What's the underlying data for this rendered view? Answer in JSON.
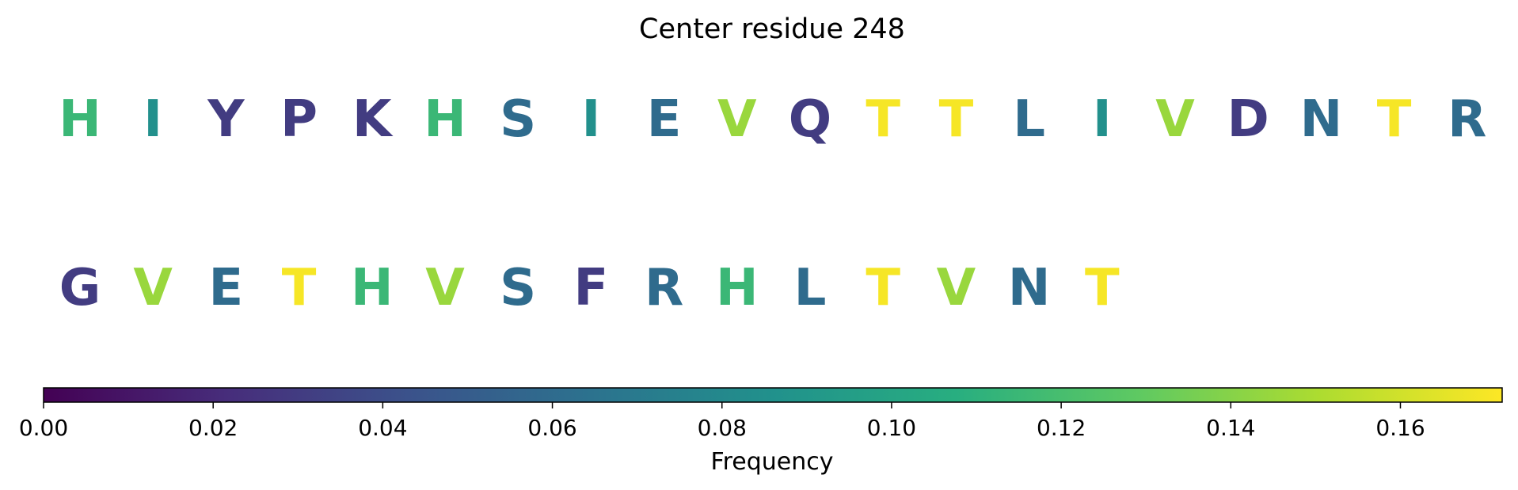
{
  "chart_data": {
    "type": "heatmap",
    "title": "Center residue 248",
    "rows": [
      {
        "residues": [
          "H",
          "I",
          "Y",
          "P",
          "K",
          "H",
          "S",
          "I",
          "E",
          "V",
          "Q",
          "T",
          "T",
          "L",
          "I",
          "V",
          "D",
          "N",
          "T",
          "R"
        ],
        "frequencies": [
          0.115,
          0.085,
          0.03,
          0.03,
          0.03,
          0.115,
          0.06,
          0.085,
          0.06,
          0.145,
          0.03,
          0.17,
          0.17,
          0.06,
          0.085,
          0.145,
          0.03,
          0.06,
          0.17,
          0.06
        ]
      },
      {
        "residues": [
          "G",
          "V",
          "E",
          "T",
          "H",
          "V",
          "S",
          "F",
          "R",
          "H",
          "L",
          "T",
          "V",
          "N",
          "T"
        ],
        "frequencies": [
          0.03,
          0.145,
          0.06,
          0.17,
          0.115,
          0.145,
          0.06,
          0.03,
          0.06,
          0.115,
          0.06,
          0.17,
          0.145,
          0.06,
          0.17
        ]
      }
    ],
    "colorbar": {
      "label": "Frequency",
      "colormap": "viridis",
      "range": [
        0,
        0.172
      ],
      "ticks": [
        "0.00",
        "0.02",
        "0.04",
        "0.06",
        "0.08",
        "0.10",
        "0.12",
        "0.14",
        "0.16"
      ],
      "orientation": "horizontal"
    }
  }
}
